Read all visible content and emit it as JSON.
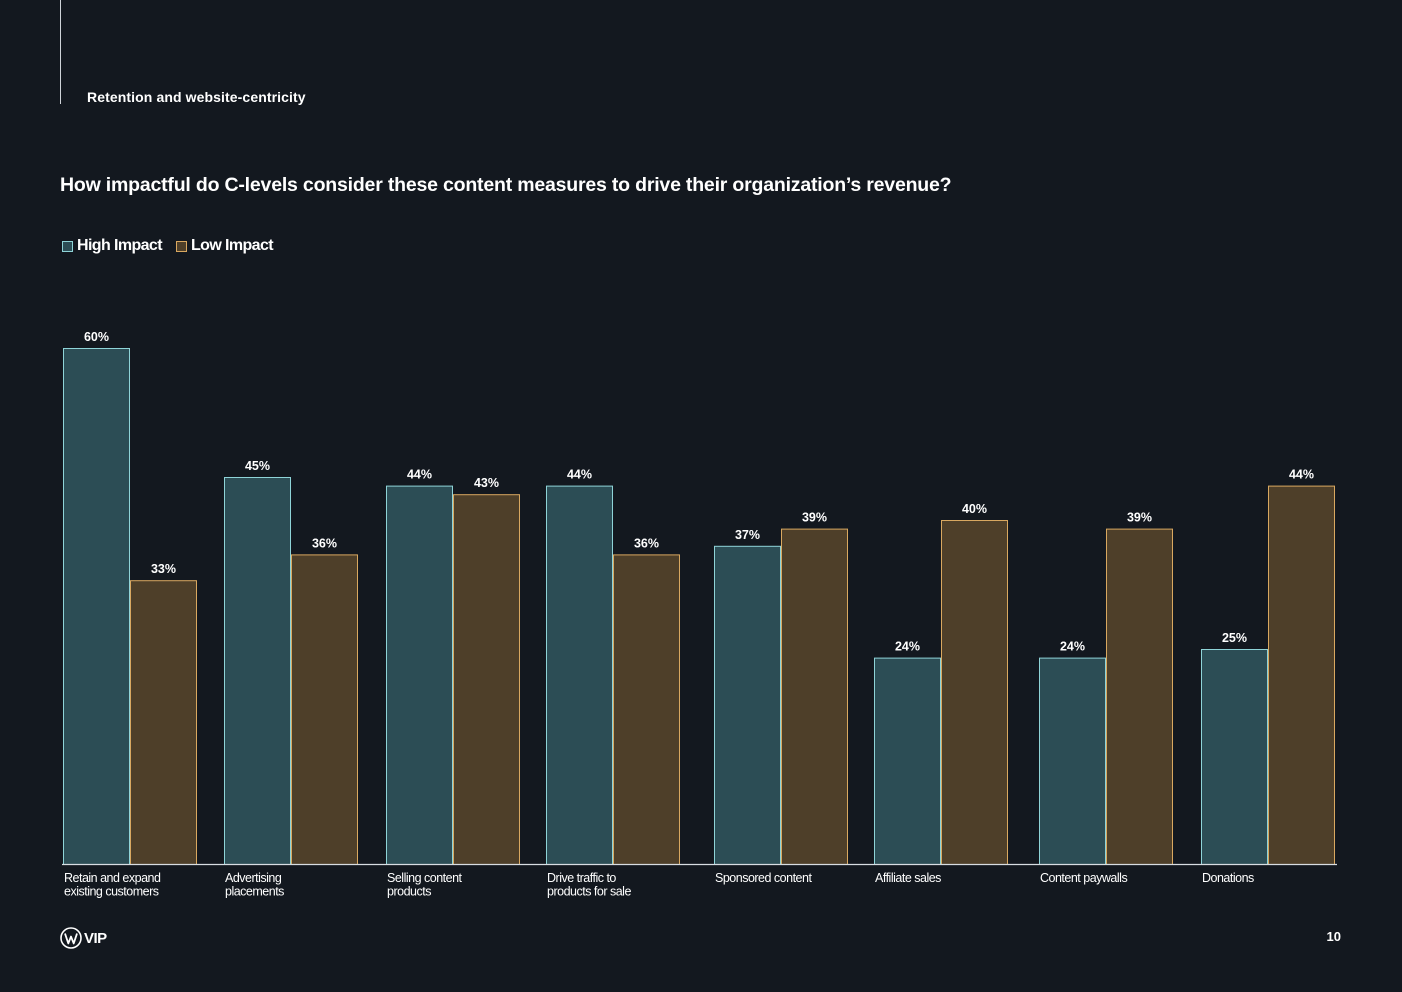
{
  "section": {
    "label": "Retention and website-centricity"
  },
  "legend": {
    "high_label": "High Impact",
    "low_label": "Low Impact"
  },
  "colors": {
    "background": "#13181f",
    "high_fill": "#2c4d55",
    "high_stroke": "#8fd4d8",
    "low_fill": "#4e3f29",
    "low_stroke": "#d9a860",
    "axis": "#d8dde2",
    "text": "#ffffff"
  },
  "footer": {
    "logo_text": "VIP",
    "page_number": "10"
  },
  "chart_data": {
    "type": "bar",
    "title": "How impactful do C-levels consider these content measures to drive their organization’s revenue?",
    "xlabel": "",
    "ylabel": "",
    "ylim": [
      0,
      60
    ],
    "grid": false,
    "legend_position": "top-left",
    "categories": [
      [
        "Retain and expand",
        "existing customers"
      ],
      [
        "Advertising",
        "placements"
      ],
      [
        "Selling content",
        "products"
      ],
      [
        "Drive traffic to",
        "products for sale"
      ],
      [
        "Sponsored content"
      ],
      [
        "Affiliate sales"
      ],
      [
        "Content paywalls"
      ],
      [
        "Donations"
      ]
    ],
    "series": [
      {
        "name": "High Impact",
        "values": [
          60,
          45,
          44,
          44,
          37,
          24,
          24,
          25
        ],
        "labels": [
          "60%",
          "45%",
          "44%",
          "44%",
          "37%",
          "24%",
          "24%",
          "25%"
        ]
      },
      {
        "name": "Low Impact",
        "values": [
          33,
          36,
          43,
          36,
          39,
          40,
          39,
          44
        ],
        "labels": [
          "33%",
          "36%",
          "43%",
          "36%",
          "39%",
          "40%",
          "39%",
          "44%"
        ]
      }
    ]
  }
}
